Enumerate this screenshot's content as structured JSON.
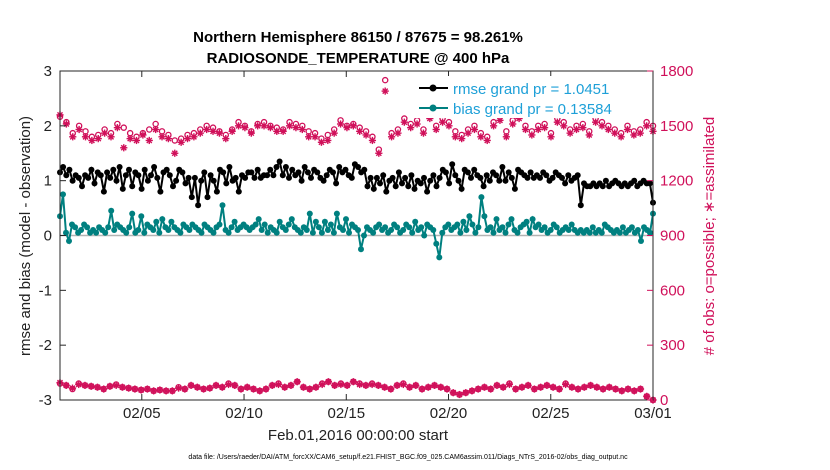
{
  "chart_data": {
    "type": "line",
    "title_line1": "Northern Hemisphere 86150 / 87675 = 98.261%",
    "title_line2": "RADIOSONDE_TEMPERATURE @ 400 hPa",
    "xlabel": "Feb.01,2016 00:00:00 start",
    "ylabel_left": "rmse and bias (model - observation)",
    "ylabel_right": "# of obs: o=possible; ∗=assimilated",
    "footnote": "data file: /Users/raeder/DAI/ATM_forcXX/CAM6_setup/f.e21.FHIST_BGC.f09_025.CAM6assim.011/Diags_NTrS_2016-02/obs_diag_output.nc",
    "x_range": [
      1,
      30
    ],
    "x_ticks": [
      5,
      10,
      15,
      20,
      25,
      30
    ],
    "x_tick_labels": [
      "02/05",
      "02/10",
      "02/15",
      "02/20",
      "02/25",
      "03/01"
    ],
    "ylim_left": [
      -3,
      3
    ],
    "y_ticks_left": [
      3,
      2,
      1,
      0,
      -1,
      -2,
      -3
    ],
    "ylim_right": [
      0,
      1800
    ],
    "y_ticks_right": [
      1800,
      1500,
      1200,
      900,
      600,
      300,
      0
    ],
    "colors": {
      "rmse": "#000000",
      "bias": "#008080",
      "obs": "#d0105a",
      "zero": "#b3b3b3"
    },
    "series": [
      {
        "name": "rmse",
        "legend": "rmse grand pr = 1.0451",
        "values": [
          1.15,
          1.25,
          1.1,
          1.2,
          1.0,
          1.1,
          1.05,
          0.9,
          1.1,
          1.05,
          1.2,
          0.95,
          1.15,
          1.1,
          0.8,
          1.15,
          1.05,
          1.2,
          1.0,
          1.25,
          0.85,
          1.1,
          1.2,
          0.9,
          1.15,
          1.1,
          0.85,
          1.2,
          1.0,
          1.1,
          1.25,
          1.05,
          0.8,
          1.15,
          1.2,
          1.1,
          0.9,
          1.0,
          1.2,
          1.15,
          0.95,
          1.05,
          0.7,
          1.05,
          0.55,
          1.0,
          1.15,
          0.7,
          1.1,
          1.0,
          0.8,
          1.2,
          1.15,
          0.95,
          1.25,
          1.0,
          1.05,
          0.8,
          1.1,
          1.05,
          1.15,
          1.15,
          1.05,
          1.2,
          1.05,
          1.1,
          1.1,
          1.2,
          1.1,
          1.25,
          1.35,
          1.1,
          1.25,
          1.05,
          1.2,
          1.1,
          1.15,
          1.0,
          1.25,
          1.15,
          1.05,
          1.2,
          1.15,
          1.05,
          1.0,
          1.1,
          1.2,
          1.15,
          0.95,
          1.25,
          1.15,
          1.2,
          1.1,
          1.05,
          1.3,
          1.25,
          1.15,
          1.2,
          0.9,
          1.05,
          0.85,
          1.05,
          0.95,
          1.1,
          0.8,
          1.0,
          1.05,
          0.9,
          1.15,
          0.95,
          1.05,
          0.9,
          1.1,
          0.85,
          1.0,
          0.95,
          1.05,
          0.8,
          1.0,
          1.1,
          0.9,
          1.05,
          1.2,
          1.15,
          0.95,
          1.3,
          1.1,
          1.0,
          0.85,
          1.2,
          1.15,
          1.05,
          1.2,
          1.1,
          1.05,
          0.9,
          1.1,
          1.0,
          1.15,
          1.1,
          1.0,
          1.25,
          1.0,
          1.15,
          1.05,
          0.85,
          1.2,
          1.15,
          1.1,
          1.05,
          1.15,
          1.05,
          1.1,
          1.05,
          1.15,
          1.1,
          1.0,
          1.05,
          1.15,
          1.1,
          1.05,
          0.95,
          1.1,
          1.0,
          1.05,
          1.1,
          0.55,
          0.95,
          0.9,
          0.9,
          0.95,
          0.9,
          0.95,
          0.9,
          1.0,
          0.9,
          0.95,
          1.0,
          0.95,
          0.9,
          0.95,
          0.9,
          0.95,
          1.0,
          0.9,
          0.95,
          1.0,
          0.95,
          0.95,
          0.6
        ]
      },
      {
        "name": "bias",
        "legend": "bias grand pr = 0.13584",
        "values": [
          0.35,
          0.75,
          0.05,
          -0.1,
          0.2,
          0.15,
          0.05,
          0.1,
          0.2,
          0.15,
          0.05,
          0.1,
          0.05,
          0.15,
          0.1,
          0.05,
          0.15,
          0.45,
          0.1,
          0.2,
          0.15,
          0.1,
          0.05,
          0.15,
          0.4,
          0.05,
          0.1,
          0.35,
          0.05,
          0.2,
          0.15,
          0.1,
          0.25,
          0.05,
          0.3,
          0.15,
          0.1,
          0.25,
          0.15,
          0.1,
          0.05,
          0.2,
          0.15,
          0.1,
          0.2,
          0.15,
          0.1,
          0.05,
          0.2,
          0.15,
          0.1,
          0.05,
          0.15,
          0.2,
          0.55,
          0.1,
          0.05,
          0.15,
          0.25,
          0.1,
          0.15,
          0.2,
          0.15,
          0.1,
          0.15,
          0.2,
          0.3,
          0.1,
          0.2,
          0.05,
          0.15,
          0.1,
          0.05,
          0.25,
          0.15,
          0.1,
          0.2,
          0.3,
          0.15,
          0.1,
          0.05,
          0.15,
          0.1,
          0.4,
          0.05,
          0.25,
          0.15,
          0.05,
          0.25,
          0.1,
          0.2,
          0.05,
          0.4,
          0.15,
          0.1,
          0.3,
          0.05,
          0.2,
          0.15,
          0.1,
          -0.25,
          0.0,
          0.15,
          0.1,
          0.05,
          0.15,
          0.2,
          0.1,
          0.15,
          0.05,
          0.1,
          0.2,
          0.15,
          0.05,
          0.1,
          0.2,
          0.15,
          0.05,
          0.25,
          0.1,
          0.15,
          0.0,
          0.2,
          0.15,
          0.1,
          -0.15,
          -0.4,
          0.05,
          0.15,
          0.2,
          0.1,
          0.15,
          0.2,
          0.05,
          0.25,
          0.1,
          0.35,
          0.2,
          0.05,
          0.15,
          0.7,
          0.35,
          0.1,
          0.15,
          0.05,
          0.3,
          0.1,
          0.15,
          0.05,
          0.2,
          0.3,
          0.1,
          0.05,
          0.15,
          0.2,
          0.25,
          0.05,
          0.3,
          0.15,
          0.2,
          0.1,
          0.15,
          0.05,
          0.1,
          0.2,
          0.15,
          0.05,
          0.1,
          0.15,
          0.1,
          0.2,
          0.1,
          0.05,
          0.1,
          0.05,
          0.1,
          0.05,
          0.15,
          0.05,
          0.1,
          0.05,
          0.2,
          0.15,
          0.1,
          0.05,
          0.1,
          0.05,
          0.15,
          0.05,
          0.1,
          0.15,
          0.05,
          0.1,
          -0.1,
          0.15,
          0.1,
          0.05,
          0.4
        ]
      }
    ],
    "obs_possible_top": [
      1550,
      1520,
      1460,
      1500,
      1470,
      1440,
      1450,
      1480,
      1460,
      1510,
      1490,
      1460,
      1440,
      1460,
      1480,
      1510,
      1470,
      1450,
      1420,
      1430,
      1450,
      1460,
      1480,
      1500,
      1490,
      1470,
      1450,
      1480,
      1520,
      1500,
      1470,
      1510,
      1520,
      1500,
      1490,
      1480,
      1520,
      1510,
      1500,
      1470,
      1460,
      1430,
      1450,
      1480,
      1530,
      1500,
      1510,
      1490,
      1470,
      1440,
      1370,
      1750,
      1460,
      1480,
      1540,
      1510,
      1530,
      1480,
      1560,
      1500,
      1540,
      1520,
      1470,
      1450,
      1480,
      1500,
      1460,
      1440,
      1520,
      1550,
      1470,
      1530,
      1560,
      1500,
      1470,
      1500,
      1510,
      1460,
      1540,
      1520,
      1480,
      1500,
      1510,
      1470,
      1540,
      1520,
      1500,
      1480,
      1460,
      1500,
      1470,
      1480,
      1520,
      1500
    ],
    "obs_assimilated_top": [
      1560,
      1510,
      1440,
      1480,
      1440,
      1420,
      1430,
      1460,
      1440,
      1490,
      1380,
      1430,
      1420,
      1450,
      1420,
      1480,
      1440,
      1430,
      1350,
      1410,
      1430,
      1440,
      1460,
      1480,
      1470,
      1460,
      1430,
      1470,
      1500,
      1490,
      1460,
      1500,
      1500,
      1490,
      1470,
      1470,
      1500,
      1490,
      1480,
      1440,
      1440,
      1410,
      1420,
      1460,
      1510,
      1490,
      1500,
      1470,
      1450,
      1420,
      1350,
      1690,
      1440,
      1460,
      1520,
      1490,
      1510,
      1460,
      1540,
      1480,
      1520,
      1500,
      1440,
      1430,
      1460,
      1480,
      1440,
      1420,
      1500,
      1530,
      1440,
      1510,
      1540,
      1480,
      1450,
      1480,
      1490,
      1440,
      1520,
      1500,
      1460,
      1480,
      1490,
      1450,
      1520,
      1500,
      1480,
      1460,
      1440,
      1480,
      1450,
      1460,
      1500,
      1470
    ],
    "obs_possible_bottom": [
      90,
      80,
      60,
      90,
      80,
      75,
      70,
      60,
      75,
      85,
      70,
      65,
      60,
      55,
      60,
      50,
      55,
      50,
      50,
      70,
      60,
      80,
      70,
      60,
      65,
      80,
      70,
      90,
      80,
      60,
      70,
      60,
      50,
      60,
      80,
      90,
      70,
      80,
      100,
      70,
      60,
      70,
      90,
      100,
      80,
      90,
      80,
      100,
      90,
      80,
      90,
      80,
      70,
      60,
      80,
      90,
      70,
      80,
      60,
      70,
      80,
      70,
      60,
      40,
      30,
      40,
      50,
      60,
      70,
      60,
      80,
      70,
      90,
      60,
      70,
      80,
      60,
      70,
      80,
      70,
      60,
      90,
      70,
      60,
      70,
      80,
      70,
      60,
      70,
      60,
      50,
      60,
      50,
      60,
      20,
      0
    ],
    "obs_assimilated_bottom": [
      95,
      80,
      65,
      85,
      80,
      75,
      70,
      60,
      75,
      80,
      70,
      65,
      60,
      55,
      60,
      50,
      55,
      50,
      50,
      65,
      60,
      80,
      70,
      60,
      65,
      80,
      70,
      85,
      80,
      60,
      70,
      60,
      50,
      60,
      80,
      85,
      70,
      80,
      100,
      70,
      60,
      70,
      85,
      100,
      80,
      85,
      80,
      100,
      85,
      80,
      85,
      80,
      70,
      60,
      80,
      85,
      70,
      80,
      60,
      70,
      80,
      70,
      60,
      40,
      30,
      40,
      50,
      60,
      70,
      60,
      80,
      70,
      85,
      60,
      70,
      80,
      60,
      70,
      80,
      70,
      60,
      85,
      70,
      60,
      70,
      80,
      70,
      60,
      70,
      60,
      50,
      60,
      50,
      60,
      20,
      0
    ]
  }
}
